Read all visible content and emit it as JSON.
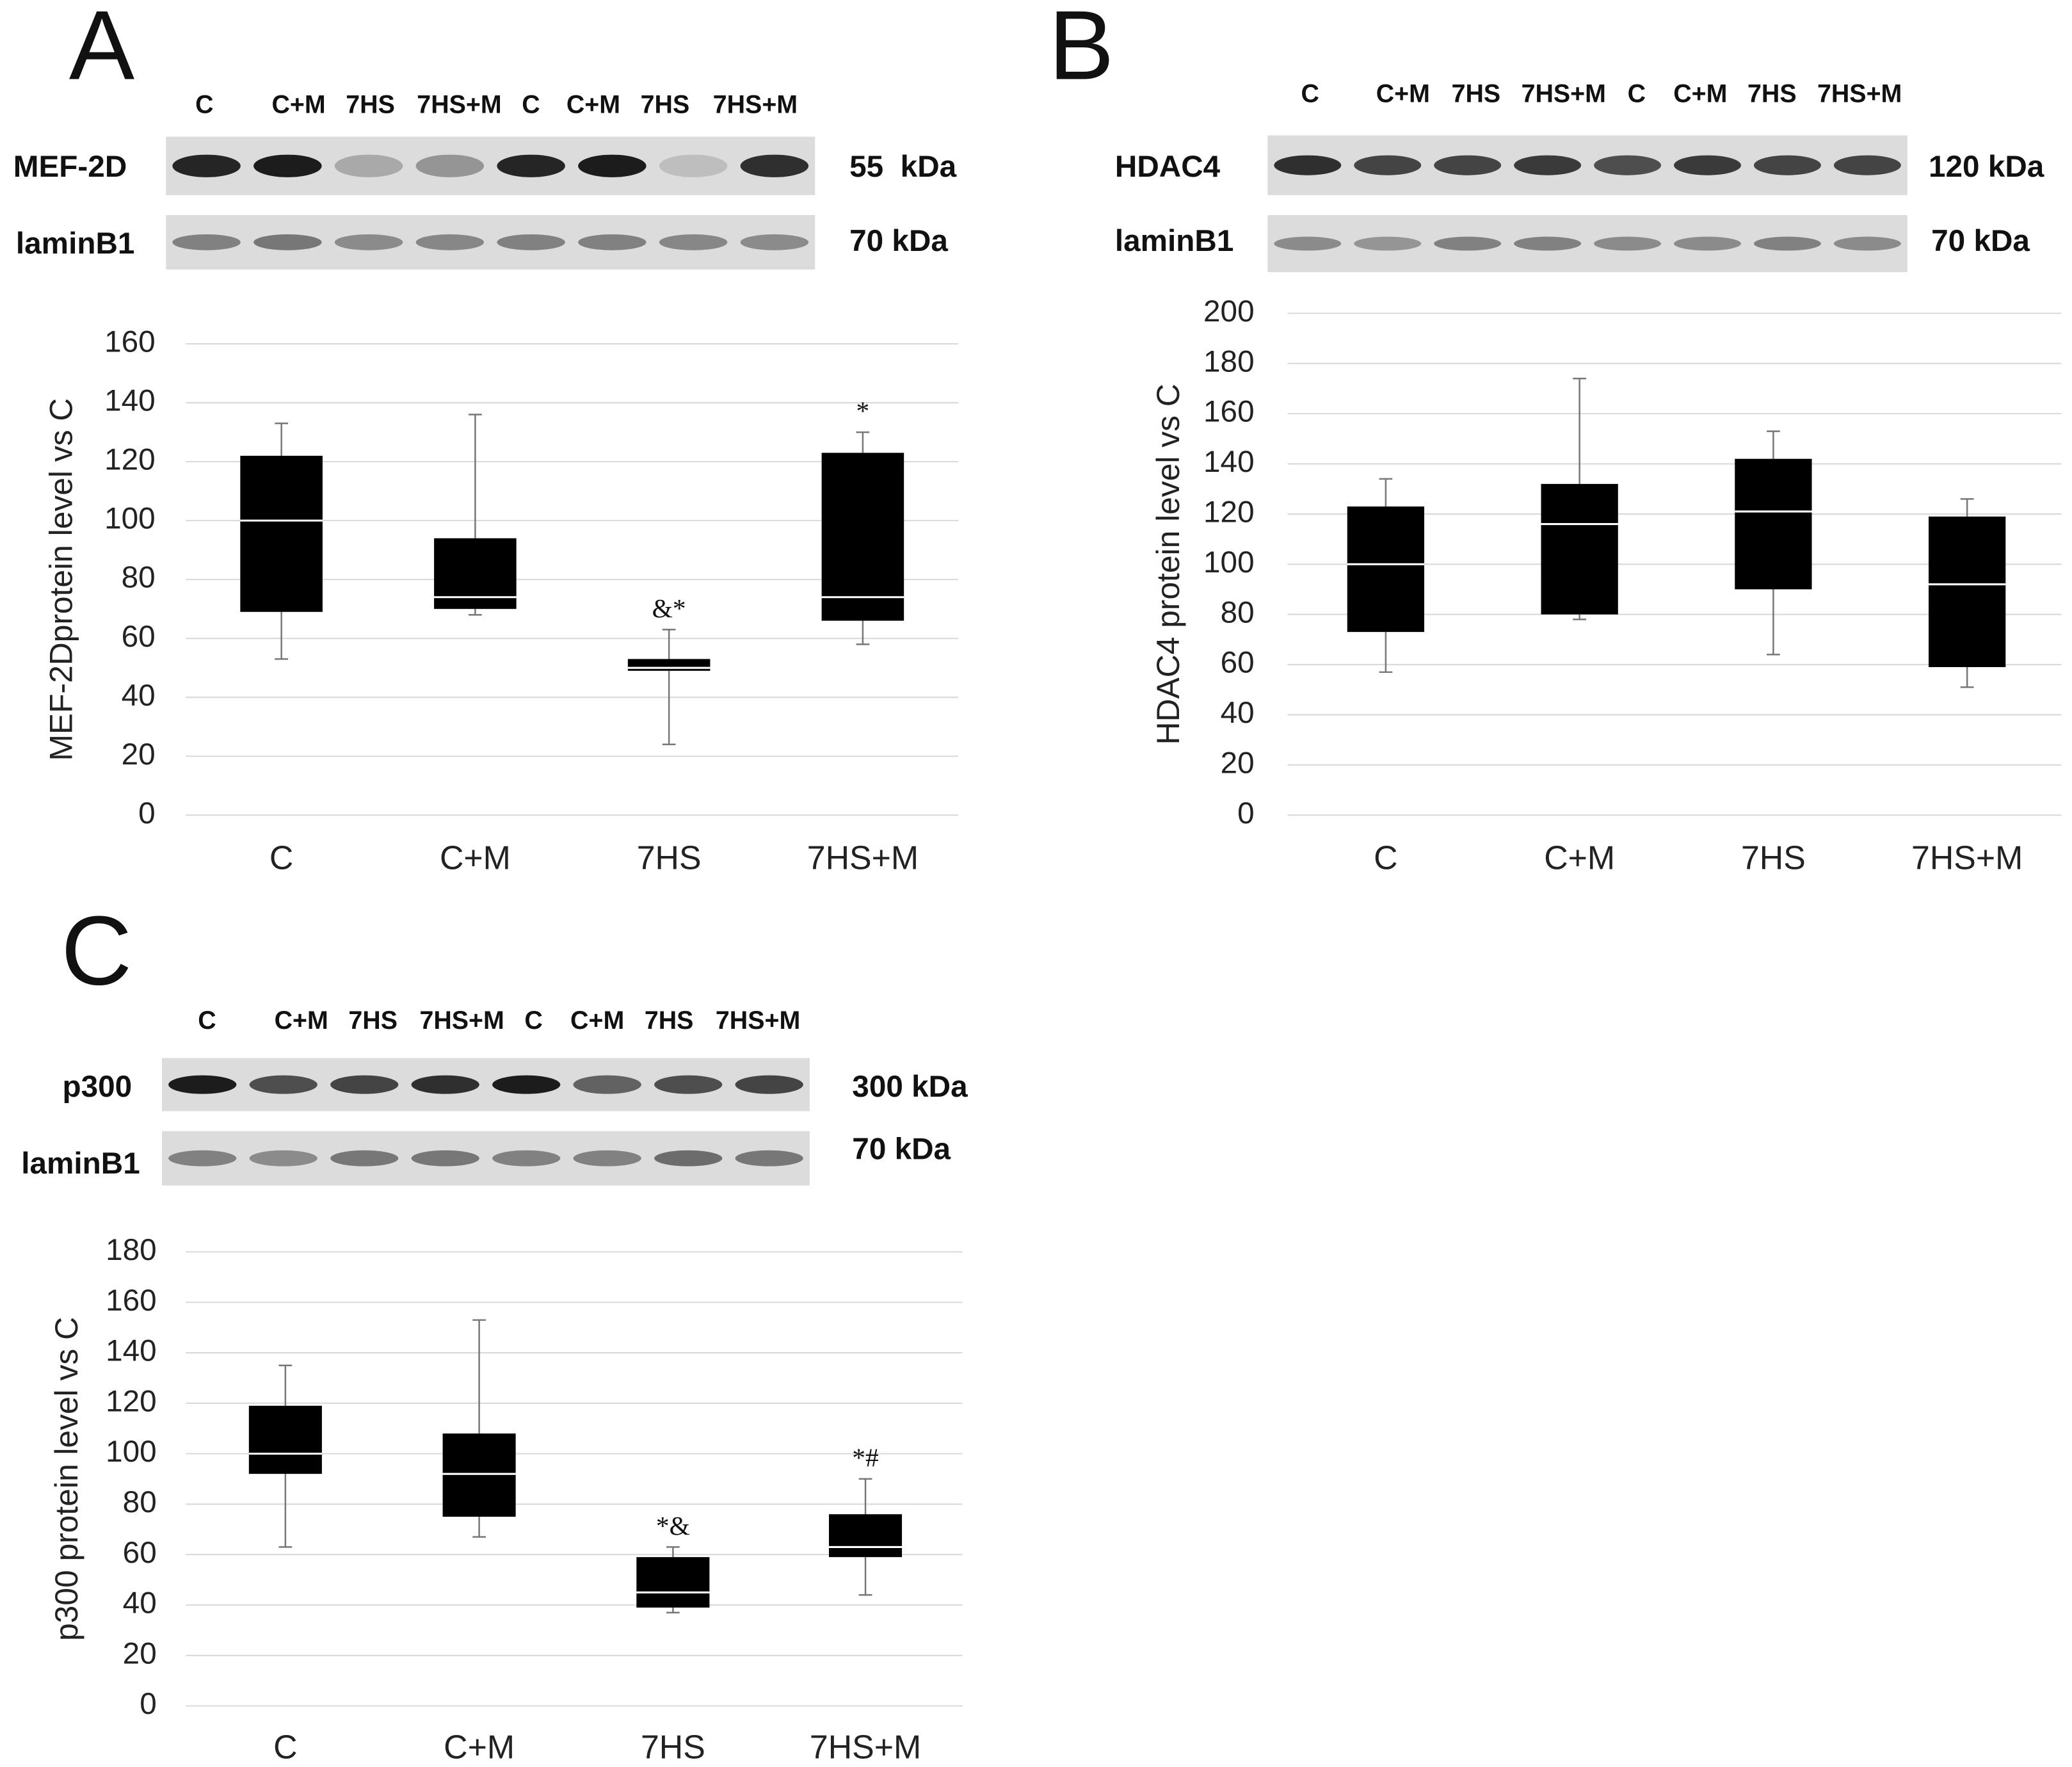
{
  "chart_data": [
    {
      "type": "box",
      "panel": "A",
      "lanes": [
        "C",
        "C+M",
        "7HS",
        "7HS+M",
        "C",
        "C+M",
        "7HS",
        "7HS+M"
      ],
      "blot": [
        {
          "protein": "MEF-2D",
          "size": "55  kDa"
        },
        {
          "protein": "laminB1",
          "size": "70 kDa"
        }
      ],
      "ylabel": "MEF-2Dprotein level vs C",
      "categories": [
        "C",
        "C+M",
        "7HS",
        "7HS+M"
      ],
      "min": [
        53,
        68,
        24,
        58
      ],
      "q1": [
        69,
        70,
        49,
        66
      ],
      "median": [
        100,
        74,
        50,
        74
      ],
      "q3": [
        122,
        94,
        53,
        123
      ],
      "max": [
        133,
        136,
        63,
        130
      ],
      "annotations": [
        null,
        null,
        "&*",
        "*"
      ],
      "color": "#000000",
      "ylim": [
        0,
        160
      ],
      "yticks": [
        0,
        20,
        40,
        60,
        80,
        100,
        120,
        140,
        160
      ],
      "grid": true
    },
    {
      "type": "box",
      "panel": "B",
      "lanes": [
        "C",
        "C+M",
        "7HS",
        "7HS+M",
        "C",
        "C+M",
        "7HS",
        "7HS+M"
      ],
      "blot": [
        {
          "protein": "HDAC4",
          "size": "120 kDa"
        },
        {
          "protein": "laminB1",
          "size": "70 kDa"
        }
      ],
      "ylabel": "HDAC4 protein level vs C",
      "categories": [
        "C",
        "C+M",
        "7HS",
        "7HS+M"
      ],
      "min": [
        57,
        78,
        64,
        51
      ],
      "q1": [
        73,
        80,
        90,
        59
      ],
      "median": [
        100,
        116,
        121,
        92
      ],
      "q3": [
        123,
        132,
        142,
        119
      ],
      "max": [
        134,
        174,
        153,
        126
      ],
      "annotations": [
        null,
        null,
        null,
        null
      ],
      "color": "#000000",
      "ylim": [
        0,
        200
      ],
      "yticks": [
        0,
        20,
        40,
        60,
        80,
        100,
        120,
        140,
        160,
        180,
        200
      ],
      "grid": true
    },
    {
      "type": "box",
      "panel": "C",
      "lanes": [
        "C",
        "C+M",
        "7HS",
        "7HS+M",
        "C",
        "C+M",
        "7HS",
        "7HS+M"
      ],
      "blot": [
        {
          "protein": "p300",
          "size": "300 kDa"
        },
        {
          "protein": "laminB1",
          "size": "70 kDa"
        }
      ],
      "ylabel": "p300 protein level vs C",
      "categories": [
        "C",
        "C+M",
        "7HS",
        "7HS+M"
      ],
      "min": [
        63,
        67,
        37,
        44
      ],
      "q1": [
        92,
        75,
        39,
        59
      ],
      "median": [
        100,
        92,
        45,
        63
      ],
      "q3": [
        119,
        108,
        59,
        76
      ],
      "max": [
        135,
        153,
        63,
        90
      ],
      "annotations": [
        null,
        null,
        "*&",
        "*#"
      ],
      "color": "#000000",
      "ylim": [
        0,
        180
      ],
      "yticks": [
        0,
        20,
        40,
        60,
        80,
        100,
        120,
        140,
        160,
        180
      ],
      "grid": true
    }
  ]
}
